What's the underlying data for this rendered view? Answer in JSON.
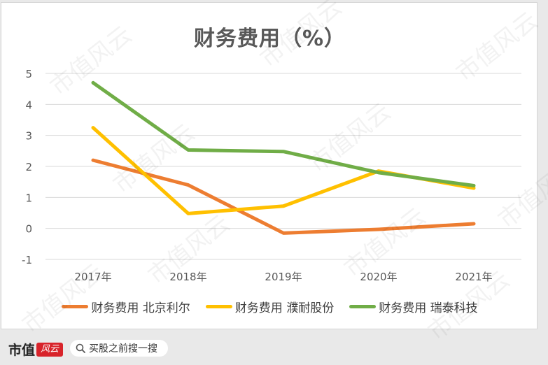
{
  "chart_data": {
    "type": "line",
    "title": "财务费用（%）",
    "categories": [
      "2017年",
      "2018年",
      "2019年",
      "2020年",
      "2021年"
    ],
    "y_ticks": [
      "5",
      "4",
      "3",
      "2",
      "1",
      "0",
      "-1"
    ],
    "ylim": [
      -1,
      5
    ],
    "grid": true,
    "legend_position": "bottom",
    "series": [
      {
        "name": "财务费用 北京利尔",
        "color": "#ed7d31",
        "values": [
          2.2,
          1.4,
          -0.15,
          -0.03,
          0.15
        ]
      },
      {
        "name": "财务费用 濮耐股份",
        "color": "#ffc000",
        "values": [
          3.25,
          0.48,
          0.72,
          1.85,
          1.3
        ]
      },
      {
        "name": "财务费用 瑞泰科技",
        "color": "#70ad47",
        "values": [
          4.7,
          2.53,
          2.48,
          1.8,
          1.38
        ]
      }
    ]
  },
  "watermark_text": "市值风云",
  "footer": {
    "brand_name": "市值",
    "brand_badge": "风云",
    "search_icon": "search-icon",
    "search_text": "买股之前搜一搜"
  }
}
